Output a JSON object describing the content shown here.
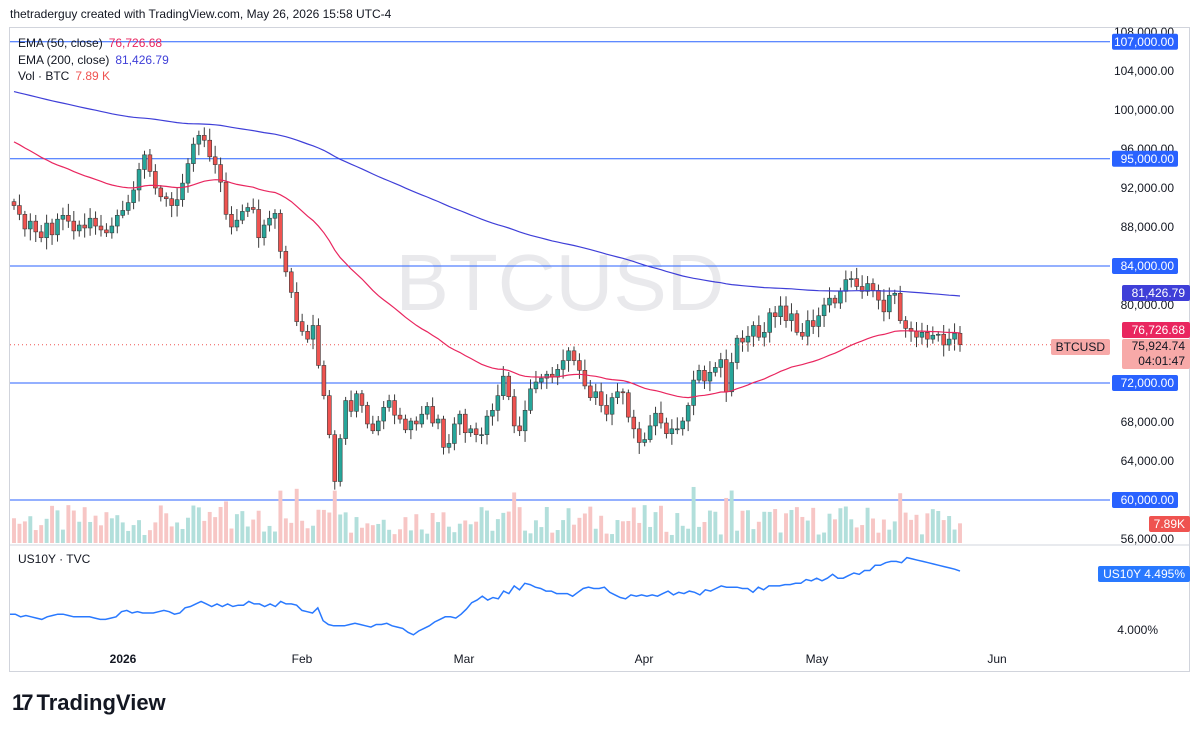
{
  "header": {
    "attribution": "thetraderguy created with TradingView.com, May 26, 2026 15:58 UTC-4"
  },
  "watermark": "BTCUSD",
  "legend": [
    {
      "label": "EMA (50, close)",
      "value": "76,726.68",
      "color": "#e9265f"
    },
    {
      "label": "EMA (200, close)",
      "value": "81,426.79",
      "color": "#3f3fd8"
    },
    {
      "label": "Vol · BTC",
      "value": "7.89 K",
      "color": "#ef5350"
    }
  ],
  "sub_pane": {
    "label": "US10Y · TVC",
    "tag_symbol": "US10Y",
    "tag_value": "4.495%",
    "axis_label": "4.000%"
  },
  "price_tags": {
    "ema50": "76,726.68",
    "ema200": "81,426.79",
    "symbol": "BTCUSD",
    "last": "75,924.74",
    "countdown": "04:01:47",
    "volume": "7.89K"
  },
  "colors": {
    "up": "#26a69a",
    "down": "#ef5350",
    "ema50": "#e9265f",
    "ema200": "#3f3fd8",
    "hline": "#2962ff",
    "us10y": "#2979ff"
  },
  "brand": "TradingView",
  "chart_data": [
    {
      "type": "candlestick",
      "title": "BTCUSD",
      "x_ticks": [
        "2026",
        "Feb",
        "Mar",
        "Apr",
        "May",
        "Jun"
      ],
      "y_ticks": [
        "108,000.00",
        "104,000.00",
        "100,000.00",
        "96,000.00",
        "92,000.00",
        "88,000.00",
        "80,000.00",
        "68,000.00",
        "64,000.00",
        "56,000.00"
      ],
      "ylim": [
        56000,
        108000
      ],
      "horizontal_levels": [
        {
          "value": 107000,
          "label": "107,000.00"
        },
        {
          "value": 95000,
          "label": "95,000.00"
        },
        {
          "value": 84000,
          "label": "84,000.00"
        },
        {
          "value": 72000,
          "label": "72,000.00"
        },
        {
          "value": 60000,
          "label": "60,000.00"
        }
      ],
      "close": [
        90200,
        89300,
        87800,
        88600,
        87500,
        86900,
        88400,
        87200,
        88800,
        89200,
        88600,
        87600,
        88200,
        87900,
        88900,
        88100,
        87700,
        87400,
        88100,
        89200,
        89700,
        90500,
        91800,
        93900,
        95400,
        93700,
        92000,
        91100,
        90900,
        90200,
        90800,
        92500,
        94500,
        96500,
        97400,
        96900,
        95200,
        94400,
        92600,
        89300,
        88000,
        88700,
        89600,
        90000,
        89800,
        86900,
        88200,
        88900,
        89400,
        85500,
        83400,
        81300,
        78300,
        77300,
        76500,
        77900,
        73800,
        70700,
        66700,
        61900,
        66300,
        70200,
        69100,
        70900,
        69700,
        67800,
        67100,
        68100,
        69500,
        70200,
        68700,
        68300,
        67200,
        68100,
        67800,
        68800,
        69600,
        67900,
        68300,
        65400,
        65800,
        67800,
        68800,
        66900,
        67300,
        66700,
        66700,
        68600,
        69200,
        70700,
        72700,
        70600,
        67600,
        67100,
        69200,
        71400,
        72100,
        72500,
        72900,
        72600,
        73400,
        74300,
        75300,
        74300,
        73300,
        71700,
        70500,
        71100,
        69700,
        68800,
        70500,
        71100,
        71000,
        68500,
        67300,
        65900,
        66200,
        67600,
        68900,
        67900,
        66800,
        67300,
        67300,
        68100,
        69700,
        72300,
        73300,
        72200,
        73100,
        73600,
        74400,
        71100,
        74100,
        76600,
        76200,
        76800,
        77900,
        76700,
        77200,
        79200,
        78800,
        79900,
        78400,
        79100,
        77200,
        76800,
        78400,
        77800,
        78900,
        80000,
        80700,
        80200,
        81400,
        82600,
        82700,
        81900,
        81400,
        82200,
        81500,
        80500,
        79300,
        81000,
        81200,
        78400,
        77600,
        77300,
        76700,
        77200,
        76500,
        76900,
        77000,
        75900,
        76500,
        77100,
        75924.74
      ],
      "ema50_end": 76726.68,
      "ema200_end": 81426.79,
      "volume_last": "7.89K"
    },
    {
      "type": "line",
      "title": "US10Y · TVC",
      "series": [
        {
          "name": "US10Y",
          "last": 4.495
        }
      ],
      "values": [
        4.16,
        4.16,
        4.14,
        4.15,
        4.14,
        4.13,
        4.12,
        4.14,
        4.15,
        4.16,
        4.16,
        4.15,
        4.14,
        4.14,
        4.14,
        4.14,
        4.13,
        4.12,
        4.12,
        4.13,
        4.14,
        4.18,
        4.19,
        4.17,
        4.18,
        4.17,
        4.17,
        4.17,
        4.18,
        4.19,
        4.18,
        4.16,
        4.17,
        4.21,
        4.22,
        4.24,
        4.26,
        4.24,
        4.22,
        4.24,
        4.22,
        4.24,
        4.22,
        4.23,
        4.23,
        4.26,
        4.24,
        4.24,
        4.22,
        4.24,
        4.22,
        4.26,
        4.24,
        4.24,
        4.23,
        4.19,
        4.18,
        4.17,
        4.21,
        4.11,
        4.08,
        4.07,
        4.07,
        4.07,
        4.08,
        4.09,
        4.08,
        4.07,
        4.06,
        4.08,
        4.08,
        4.09,
        4.07,
        4.06,
        4.05,
        4.02,
        4.0,
        4.03,
        4.05,
        4.07,
        4.1,
        4.12,
        4.14,
        4.14,
        4.13,
        4.16,
        4.2,
        4.25,
        4.27,
        4.3,
        4.27,
        4.29,
        4.28,
        4.34,
        4.32,
        4.38,
        4.35,
        4.4,
        4.39,
        4.37,
        4.36,
        4.34,
        4.34,
        4.32,
        4.32,
        4.32,
        4.3,
        4.33,
        4.36,
        4.37,
        4.36,
        4.36,
        4.37,
        4.33,
        4.31,
        4.29,
        4.28,
        4.31,
        4.3,
        4.31,
        4.3,
        4.31,
        4.3,
        4.32,
        4.34,
        4.31,
        4.33,
        4.32,
        4.34,
        4.33,
        4.31,
        4.35,
        4.34,
        4.36,
        4.38,
        4.37,
        4.37,
        4.37,
        4.36,
        4.36,
        4.33,
        4.37,
        4.35,
        4.38,
        4.38,
        4.38,
        4.39,
        4.39,
        4.4,
        4.4,
        4.43,
        4.42,
        4.44,
        4.42,
        4.44,
        4.47,
        4.44,
        4.44,
        4.46,
        4.48,
        4.47,
        4.5,
        4.5,
        4.54,
        4.54,
        4.56,
        4.57,
        4.57,
        4.56,
        4.6,
        4.59,
        4.58,
        4.57,
        4.56,
        4.55,
        4.54,
        4.53,
        4.52,
        4.51,
        4.495
      ],
      "axis_label": "4.000%"
    }
  ]
}
